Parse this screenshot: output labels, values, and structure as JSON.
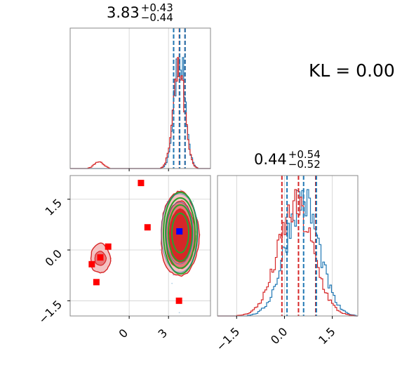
{
  "kl_text": "KL = 0.00",
  "colors": {
    "blue": "#1f77b4",
    "red": "#d62728",
    "green": "#2ca02c",
    "marker_red": "#ff0000",
    "marker_blue": "#0000ff",
    "grid": "#cfcfcf",
    "frame": "#888888"
  },
  "panels": {
    "param1_title": {
      "value": "3.83",
      "plus": "+0.43",
      "minus": "−0.44"
    },
    "param2_title": {
      "value": "0.44",
      "plus": "+0.54",
      "minus": "−0.52"
    }
  },
  "chart_data": [
    {
      "type": "histogram",
      "panel": "top-left",
      "param": 1,
      "xlim": [
        -4.5,
        6.2
      ],
      "xticks": [
        0,
        3
      ],
      "series": [
        {
          "name": "",
          "color": "#1f77b4",
          "peak_center": 3.85,
          "spread": 0.42,
          "secondary_bump": null
        },
        {
          "name": "",
          "color": "#d62728",
          "peak_center": 3.8,
          "spread": 0.44,
          "secondary_bump": {
            "center": -2.3,
            "relative_height": 0.07
          }
        }
      ],
      "quantile_lines": {
        "red": [
          3.39,
          3.83,
          4.26
        ],
        "blue": [
          3.39,
          3.85,
          4.26
        ]
      }
    },
    {
      "type": "scatter",
      "panel": "bottom-left",
      "xlim": [
        -4.5,
        6.2
      ],
      "ylim": [
        -1.95,
        2.2
      ],
      "xticks": [
        "0",
        "3"
      ],
      "yticks": [
        "1.5",
        "0.0",
        "−1.5"
      ],
      "red_markers": [
        [
          -2.5,
          -0.95
        ],
        [
          -2.85,
          -0.42
        ],
        [
          -2.2,
          -0.22
        ],
        [
          -1.6,
          0.1
        ],
        [
          0.9,
          1.98
        ],
        [
          1.4,
          0.67
        ],
        [
          3.8,
          -1.5
        ]
      ],
      "blue_marker": [
        3.83,
        0.55
      ],
      "clusters": [
        {
          "name": "",
          "color": "#d62728",
          "center": [
            3.85,
            0.45
          ],
          "levels": 3
        },
        {
          "name": "",
          "color": "#d62728",
          "center": [
            -2.2,
            -0.25
          ],
          "levels": 2
        },
        {
          "name": "",
          "color": "#2ca02c",
          "center": [
            3.9,
            0.5
          ],
          "levels": 4
        }
      ]
    },
    {
      "type": "histogram",
      "panel": "bottom-right",
      "param": 2,
      "xlim": [
        -2.1,
        2.3
      ],
      "xticks": [
        "−1.5",
        "0.0",
        "1.5"
      ],
      "series": [
        {
          "name": "",
          "color": "#1f77b4",
          "peak_center": 0.55,
          "spread": 0.52
        },
        {
          "name": "",
          "color": "#d62728",
          "peak_center": 0.35,
          "spread": 0.55
        }
      ],
      "quantile_lines": {
        "red": [
          -0.08,
          0.44,
          0.98
        ],
        "blue": [
          0.08,
          0.6,
          1.0
        ]
      }
    }
  ]
}
